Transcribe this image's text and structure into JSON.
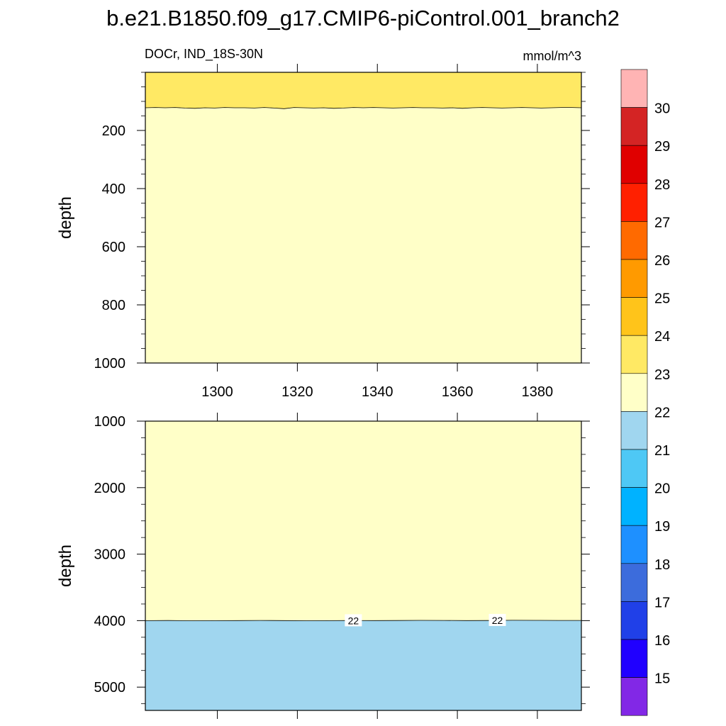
{
  "title": "b.e21.B1850.f09_g17.CMIP6-piControl.001_branch2",
  "chart_data": [
    {
      "type": "contour",
      "panel": "upper",
      "left_label": "DOCr, IND_18S-30N",
      "right_label": "mmol/m^3",
      "ylabel": "depth",
      "xlim": [
        1282,
        1391
      ],
      "ylim": [
        1000,
        0
      ],
      "xticks": [
        1300,
        1320,
        1340,
        1360,
        1380
      ],
      "yticks": [
        200,
        400,
        600,
        800,
        1000
      ],
      "regions": [
        {
          "range": "23-24",
          "depth_top": 0,
          "depth_bottom": 122,
          "color": "#ffe964"
        },
        {
          "range": "22-23",
          "depth_top": 122,
          "depth_bottom": 1000,
          "color": "#ffffc8"
        }
      ],
      "boundary_depths_23": [
        122,
        121,
        122,
        121,
        123,
        124,
        122,
        123,
        121,
        122,
        122,
        123,
        121,
        123,
        125,
        121,
        122,
        123,
        122,
        124,
        123,
        121,
        122,
        121,
        122,
        123,
        122,
        121,
        122,
        122,
        123,
        122,
        124,
        122,
        121,
        122,
        123,
        122,
        121,
        122,
        123,
        122,
        121,
        121,
        122
      ]
    },
    {
      "type": "contour",
      "panel": "lower",
      "ylabel": "depth",
      "xlim": [
        1282,
        1391
      ],
      "ylim": [
        5350,
        1000
      ],
      "yticks": [
        1000,
        2000,
        3000,
        4000,
        5000
      ],
      "regions": [
        {
          "range": "22-23",
          "depth_top": 1000,
          "depth_bottom": 4000,
          "color": "#ffffc8"
        },
        {
          "range": "21-22",
          "depth_top": 4000,
          "depth_bottom": 5350,
          "color": "#a0d6ef"
        }
      ],
      "boundary_depths_22": [
        4000,
        3998,
        4001,
        4000,
        3999,
        3997,
        3999,
        4001,
        4000,
        3998,
        3999,
        3998,
        3996,
        3997,
        3999,
        3998,
        3995,
        3996,
        3997,
        3997
      ],
      "contour_labels": [
        {
          "text": "22",
          "x": 1334.0,
          "depth": 4000
        },
        {
          "text": "22",
          "x": 1370.0,
          "depth": 3995
        }
      ]
    }
  ],
  "colorbar": {
    "labels": [
      "15",
      "16",
      "17",
      "18",
      "19",
      "20",
      "21",
      "22",
      "23",
      "24",
      "25",
      "26",
      "27",
      "28",
      "29",
      "30"
    ],
    "colors": [
      "#8228e6",
      "#2000ff",
      "#2040e8",
      "#3c6cdc",
      "#1e90ff",
      "#00b2ff",
      "#4ec8f5",
      "#a0d6ef",
      "#ffffc8",
      "#ffe964",
      "#ffc41a",
      "#ff9a00",
      "#ff6a00",
      "#ff2000",
      "#e00000",
      "#d42424",
      "#ffb4b4"
    ]
  }
}
